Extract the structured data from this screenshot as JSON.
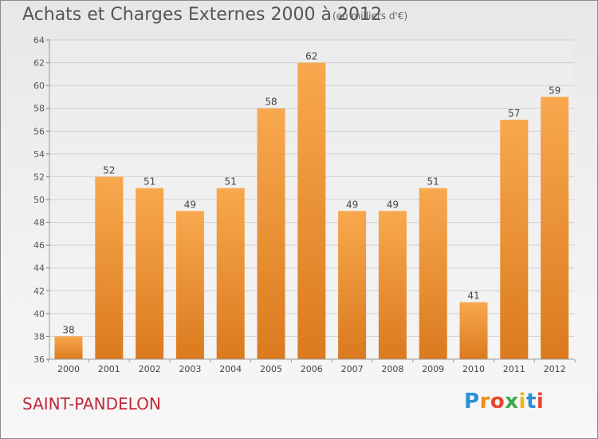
{
  "header": {
    "title": "Achats et Charges Externes 2000 à 2012",
    "subtitle": "(en milliers d'€)"
  },
  "footer": {
    "commune": "SAINT-PANDELON",
    "logo": "Proxiti"
  },
  "colors": {
    "bar_top": "#f8a84e",
    "bar_bottom": "#db7a1e",
    "grid": "#cfcfcf",
    "title": "#555555",
    "commune": "#c0283a",
    "logo": [
      "#2b8fd6",
      "#f28c1c",
      "#e8452d",
      "#3aa84a",
      "#f2b619",
      "#2b8fd6",
      "#e8452d"
    ]
  },
  "chart_data": {
    "type": "bar",
    "categories": [
      "2000",
      "2001",
      "2002",
      "2003",
      "2004",
      "2005",
      "2006",
      "2007",
      "2008",
      "2009",
      "2010",
      "2011",
      "2012"
    ],
    "values": [
      38,
      52,
      51,
      49,
      51,
      58,
      62,
      49,
      49,
      51,
      41,
      57,
      59
    ],
    "ylim": [
      36,
      64
    ],
    "yticks": [
      36,
      38,
      40,
      42,
      44,
      46,
      48,
      50,
      52,
      54,
      56,
      58,
      60,
      62,
      64
    ],
    "grid": true,
    "data_labels": true
  }
}
